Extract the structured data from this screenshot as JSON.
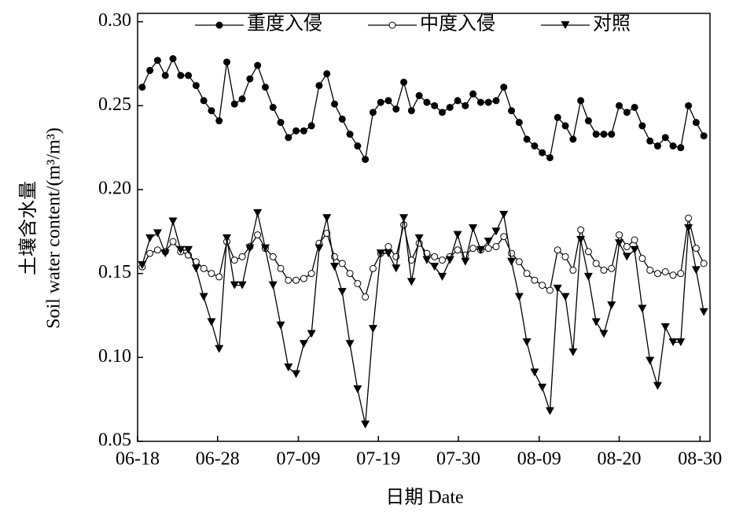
{
  "chart_data": {
    "type": "line",
    "x_label": "日期 Date",
    "y_label": "土壤含水量",
    "y_label_en": "Soil water content/(m³/m³)",
    "x": [
      1,
      2,
      3,
      4,
      5,
      6,
      7,
      8,
      9,
      10,
      11,
      12,
      13,
      14,
      15,
      16,
      17,
      18,
      19,
      20,
      21,
      22,
      23,
      24,
      25,
      26,
      27,
      28,
      29,
      30,
      31,
      32,
      33,
      34,
      35,
      36,
      37,
      38,
      39,
      40,
      41,
      42,
      43,
      44,
      45,
      46,
      47,
      48,
      49,
      50,
      51,
      52,
      53,
      54,
      55,
      56,
      57,
      58,
      59,
      60,
      61,
      62,
      63,
      64,
      65,
      66,
      67,
      68,
      69,
      70,
      71,
      72,
      73,
      74
    ],
    "xlim": [
      0.4,
      74.8
    ],
    "xticks": [
      {
        "value": 0.4,
        "label": "06-18"
      },
      {
        "value": 10.8,
        "label": "06-28"
      },
      {
        "value": 21.3,
        "label": "07-09"
      },
      {
        "value": 31.7,
        "label": "07-19"
      },
      {
        "value": 42.1,
        "label": "07-30"
      },
      {
        "value": 52.6,
        "label": "08-09"
      },
      {
        "value": 63.0,
        "label": "08-20"
      },
      {
        "value": 73.5,
        "label": "08-30"
      }
    ],
    "ylim": [
      0.05,
      0.305
    ],
    "yticks": [
      0.05,
      {
        "value": 0.1,
        "label": "0.10"
      },
      0.15,
      {
        "value": 0.2,
        "label": "0.20"
      },
      0.25,
      {
        "value": 0.3,
        "label": "0.30"
      }
    ],
    "series": [
      {
        "name": "重度入侵",
        "color": "#000000",
        "marker": "filled-circle",
        "values": [
          0.261,
          0.271,
          0.277,
          0.268,
          0.278,
          0.268,
          0.268,
          0.262,
          0.253,
          0.247,
          0.241,
          0.276,
          0.251,
          0.254,
          0.266,
          0.274,
          0.261,
          0.249,
          0.24,
          0.231,
          0.235,
          0.235,
          0.238,
          0.262,
          0.269,
          0.251,
          0.242,
          0.233,
          0.226,
          0.218,
          0.246,
          0.252,
          0.253,
          0.248,
          0.264,
          0.247,
          0.256,
          0.252,
          0.25,
          0.246,
          0.249,
          0.253,
          0.25,
          0.257,
          0.252,
          0.252,
          0.253,
          0.261,
          0.247,
          0.24,
          0.23,
          0.226,
          0.222,
          0.219,
          0.243,
          0.238,
          0.23,
          0.253,
          0.241,
          0.233,
          0.233,
          0.233,
          0.25,
          0.246,
          0.249,
          0.238,
          0.229,
          0.226,
          0.231,
          0.226,
          0.225,
          0.25,
          0.24,
          0.232
        ]
      },
      {
        "name": "中度入侵",
        "color": "#000000",
        "marker": "open-circle",
        "values": [
          0.154,
          0.162,
          0.164,
          0.163,
          0.169,
          0.163,
          0.161,
          0.157,
          0.153,
          0.15,
          0.148,
          0.169,
          0.158,
          0.16,
          0.166,
          0.173,
          0.165,
          0.16,
          0.153,
          0.146,
          0.146,
          0.147,
          0.15,
          0.168,
          0.174,
          0.16,
          0.156,
          0.15,
          0.144,
          0.136,
          0.153,
          0.162,
          0.166,
          0.16,
          0.179,
          0.158,
          0.168,
          0.162,
          0.16,
          0.158,
          0.16,
          0.164,
          0.161,
          0.165,
          0.164,
          0.165,
          0.166,
          0.172,
          0.162,
          0.157,
          0.15,
          0.146,
          0.143,
          0.14,
          0.164,
          0.16,
          0.152,
          0.176,
          0.163,
          0.156,
          0.152,
          0.153,
          0.173,
          0.166,
          0.17,
          0.159,
          0.152,
          0.15,
          0.151,
          0.149,
          0.15,
          0.183,
          0.165,
          0.156
        ]
      },
      {
        "name": "对照",
        "color": "#000000",
        "marker": "down-triangle",
        "values": [
          0.155,
          0.171,
          0.174,
          0.162,
          0.181,
          0.164,
          0.164,
          0.153,
          0.136,
          0.121,
          0.105,
          0.171,
          0.143,
          0.143,
          0.165,
          0.186,
          0.165,
          0.143,
          0.119,
          0.094,
          0.09,
          0.108,
          0.114,
          0.165,
          0.183,
          0.154,
          0.139,
          0.108,
          0.081,
          0.06,
          0.117,
          0.162,
          0.162,
          0.153,
          0.183,
          0.145,
          0.171,
          0.158,
          0.154,
          0.148,
          0.158,
          0.173,
          0.157,
          0.177,
          0.164,
          0.169,
          0.175,
          0.185,
          0.157,
          0.136,
          0.109,
          0.091,
          0.082,
          0.068,
          0.141,
          0.136,
          0.103,
          0.17,
          0.148,
          0.121,
          0.114,
          0.131,
          0.168,
          0.16,
          0.164,
          0.129,
          0.098,
          0.083,
          0.118,
          0.109,
          0.109,
          0.177,
          0.152,
          0.127
        ]
      }
    ]
  }
}
